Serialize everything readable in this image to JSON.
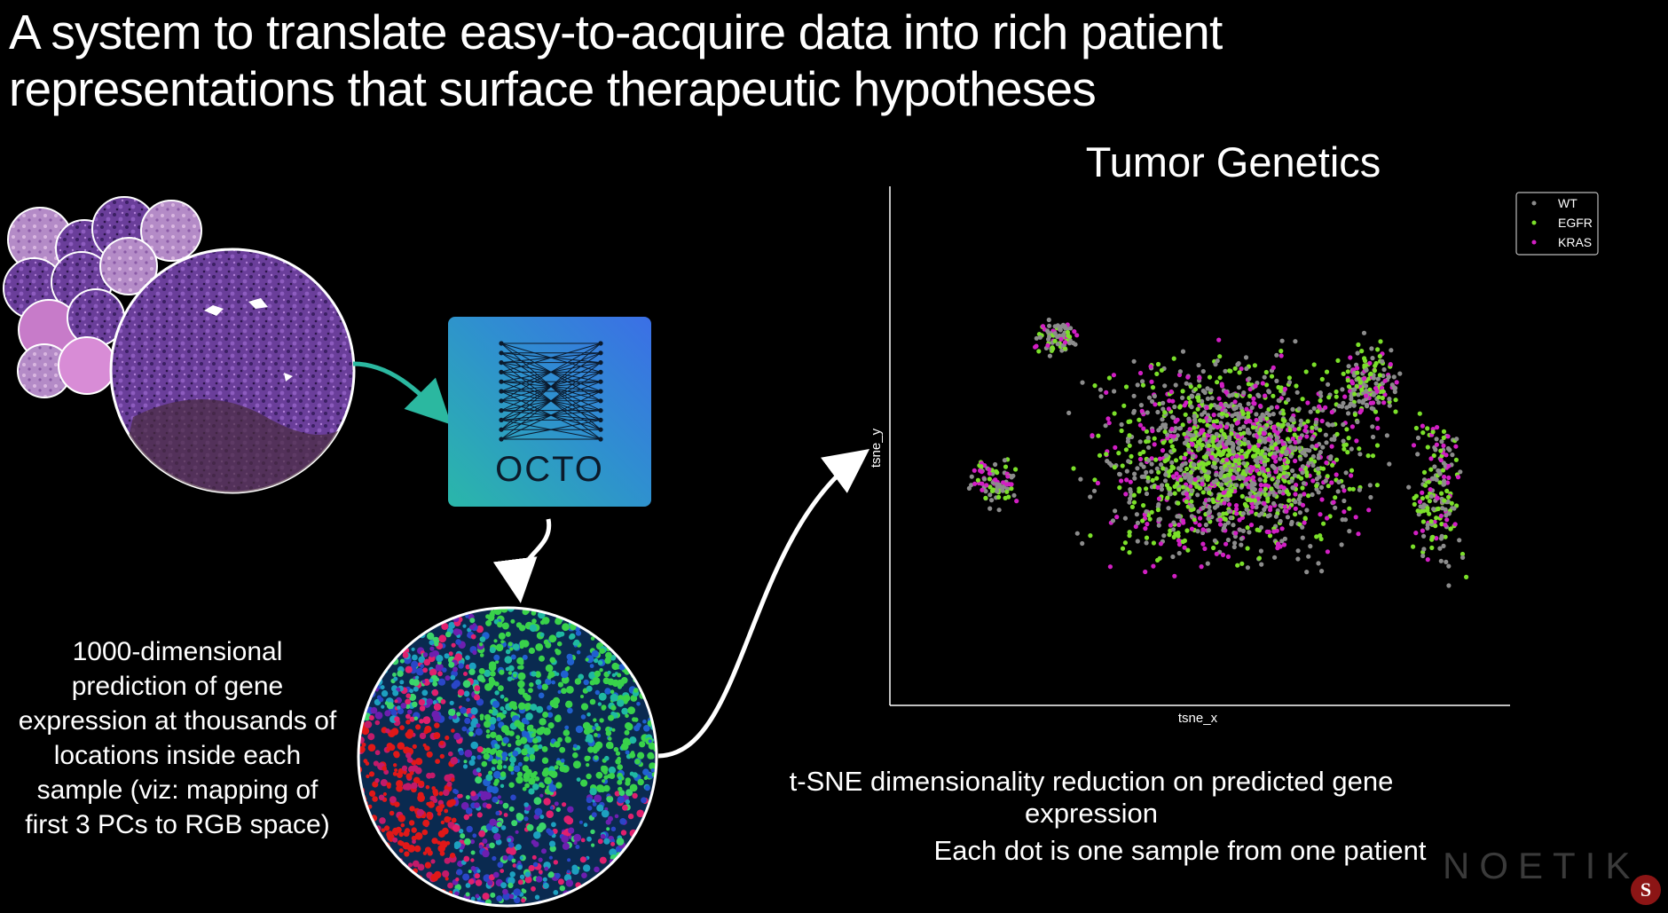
{
  "slide": {
    "title_line1": "A system to translate easy-to-acquire data into rich patient",
    "title_line2": "representations that surface therapeutic hypotheses",
    "description": "1000-dimensional prediction of gene expression at thousands of locations inside each sample (viz: mapping of first 3 PCs to RGB space)",
    "model_label": "OCTO",
    "caption_line1": "t-SNE dimensionality reduction on predicted gene expression",
    "caption_line2": "Each dot is one sample from one patient",
    "logo_text": "NOETIK",
    "badge_text": "S"
  },
  "icons": [
    "tissue-slides-icon",
    "neural-network-icon",
    "rgb-tissue-map-icon",
    "university-badge-icon"
  ],
  "colors": {
    "background": "#000000",
    "octo_gradient_start": "#2ab7a9",
    "octo_gradient_end": "#3b6fe6",
    "arrow_teal": "#2bb8a0",
    "arrow_white": "#ffffff"
  },
  "chart_data": {
    "type": "scatter",
    "title": "Tumor Genetics",
    "xlabel": "tsne_x",
    "ylabel": "tsne_y",
    "legend_position": "top-right",
    "grid": false,
    "series": [
      {
        "name": "WT",
        "color": "#8c8c8c"
      },
      {
        "name": "EGFR",
        "color": "#7be02a"
      },
      {
        "name": "KRAS",
        "color": "#d21fc4"
      }
    ]
  }
}
